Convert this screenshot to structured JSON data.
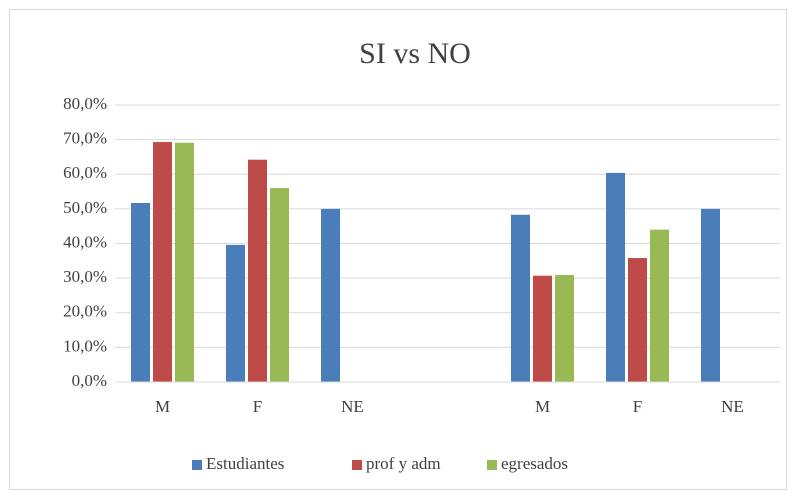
{
  "chart_data": {
    "type": "bar",
    "title": "SI vs NO",
    "categories": [
      "M",
      "F",
      "NE",
      null,
      "M",
      "F",
      "NE"
    ],
    "series": [
      {
        "name": "Estudiantes",
        "color": "#4a7ebb",
        "values": [
          51.7,
          39.6,
          50,
          null,
          48.3,
          60.4,
          50
        ]
      },
      {
        "name": "prof y adm",
        "color": "#be4b48",
        "values": [
          69.3,
          64.2,
          null,
          null,
          30.7,
          35.8,
          null
        ]
      },
      {
        "name": "egresados",
        "color": "#98b954",
        "values": [
          69.1,
          56,
          null,
          null,
          30.9,
          44,
          null
        ]
      }
    ],
    "ylim": [
      0,
      80
    ],
    "yticks": [
      {
        "value": 0,
        "label": "0,0%"
      },
      {
        "value": 10,
        "label": "10,0%"
      },
      {
        "value": 20,
        "label": "20,0%"
      },
      {
        "value": 30,
        "label": "30,0%"
      },
      {
        "value": 40,
        "label": "40,0%"
      },
      {
        "value": 50,
        "label": "50,0%"
      },
      {
        "value": 60,
        "label": "60,0%"
      },
      {
        "value": 70,
        "label": "70,0%"
      },
      {
        "value": 80,
        "label": "80,0%"
      }
    ],
    "grid": true,
    "legend": "bottom"
  }
}
